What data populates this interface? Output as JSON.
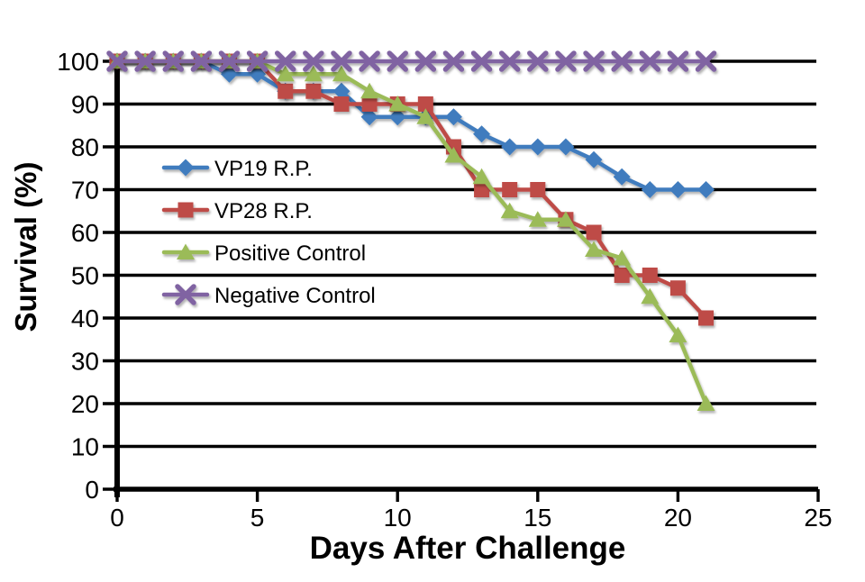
{
  "page": {
    "background": "#ffffff"
  },
  "chart_data": {
    "type": "line",
    "title": "",
    "xlabel": "Days After Challenge",
    "ylabel": "Survival (%)",
    "xlim": [
      0,
      25
    ],
    "ylim": [
      0,
      100
    ],
    "x_ticks": [
      0,
      5,
      10,
      15,
      20,
      25
    ],
    "y_ticks": [
      0,
      10,
      20,
      30,
      40,
      50,
      60,
      70,
      80,
      90,
      100
    ],
    "grid": "horizontal-only",
    "grid_color": "#000000",
    "axis_color": "#000000",
    "legend_position": "inside-upper-left",
    "x": [
      0,
      1,
      2,
      3,
      4,
      5,
      6,
      7,
      8,
      9,
      10,
      11,
      12,
      13,
      14,
      15,
      16,
      17,
      18,
      19,
      20,
      21
    ],
    "series": [
      {
        "name": "VP19 R.P.",
        "color": "#417CBE",
        "marker": "diamond",
        "values": [
          100,
          100,
          100,
          100,
          97,
          97,
          93,
          93,
          93,
          87,
          87,
          87,
          87,
          83,
          80,
          80,
          80,
          77,
          73,
          70,
          70,
          70
        ]
      },
      {
        "name": "VP28 R.P.",
        "color": "#BE4B46",
        "marker": "square",
        "values": [
          100,
          100,
          100,
          100,
          100,
          100,
          93,
          93,
          90,
          90,
          90,
          90,
          80,
          70,
          70,
          70,
          63,
          60,
          50,
          50,
          47,
          40
        ]
      },
      {
        "name": "Positive Control",
        "color": "#9BBB59",
        "marker": "triangle",
        "values": [
          100,
          100,
          100,
          100,
          100,
          100,
          97,
          97,
          97,
          93,
          90,
          87,
          78,
          73,
          65,
          63,
          63,
          56,
          54,
          45,
          36,
          20
        ]
      },
      {
        "name": "Negative Control",
        "color": "#8064A2",
        "marker": "x",
        "values": [
          100,
          100,
          100,
          100,
          100,
          100,
          100,
          100,
          100,
          100,
          100,
          100,
          100,
          100,
          100,
          100,
          100,
          100,
          100,
          100,
          100,
          100
        ]
      }
    ]
  }
}
